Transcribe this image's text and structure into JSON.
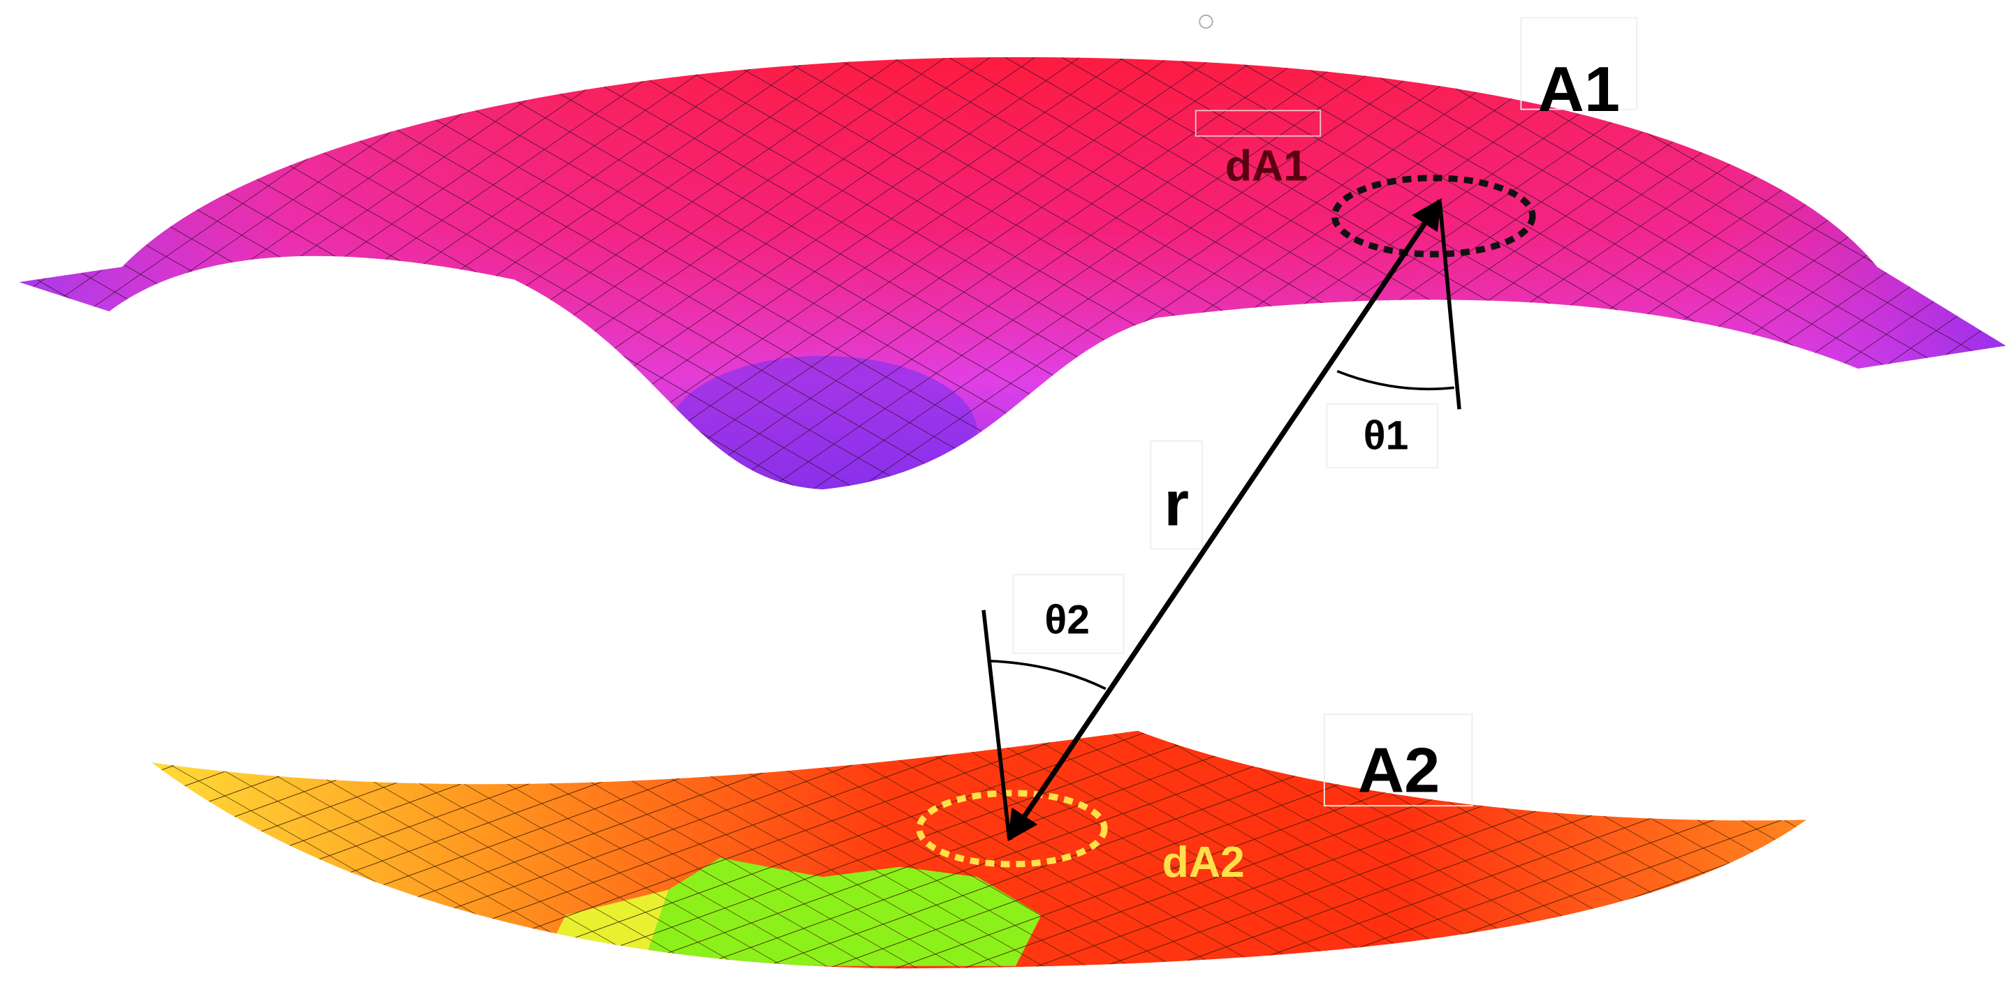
{
  "surfaces": [
    {
      "label": "A1",
      "element": "dA1"
    },
    {
      "label": "A2",
      "element": "dA2"
    }
  ],
  "distance": "r",
  "angles": [
    "θ1",
    "θ2"
  ]
}
